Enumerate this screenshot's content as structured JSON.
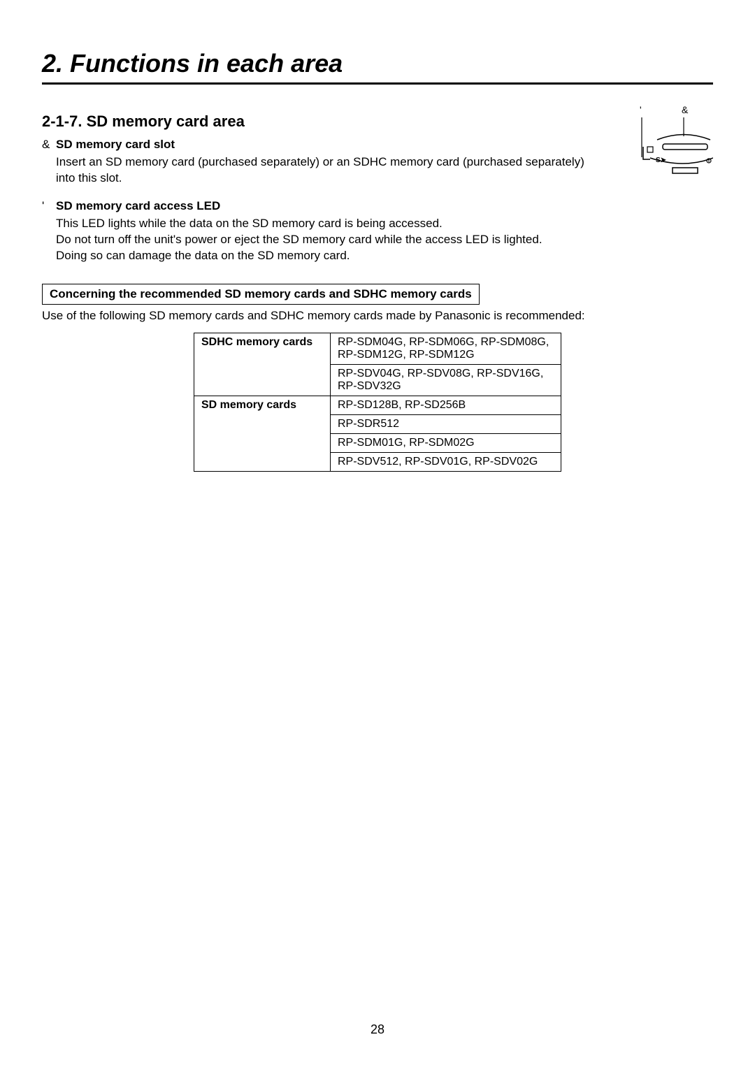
{
  "chapter_title": "2. Functions in each area",
  "section_title": "2-1-7. SD memory card area",
  "items": [
    {
      "marker": "&",
      "title": "SD memory card slot",
      "body": "Insert an SD memory card (purchased separately) or an SDHC memory card (purchased separately) into this slot."
    },
    {
      "marker": "'",
      "title": "SD memory card access LED",
      "body": "This LED lights while the data on the SD memory card is being accessed.\nDo not turn off the unit's power or eject the SD memory card while the access LED is lighted.\nDoing so can damage the data on the SD memory card."
    }
  ],
  "callout_title": "Concerning the recommended SD memory cards and SDHC memory cards",
  "callout_text": "Use of the following SD memory cards and SDHC memory cards made by Panasonic is recommended:",
  "table": {
    "groups": [
      {
        "label": "SDHC memory cards",
        "rows": [
          "RP-SDM04G, RP-SDM06G, RP-SDM08G, RP-SDM12G, RP-SDM12G",
          "RP-SDV04G, RP-SDV08G, RP-SDV16G, RP-SDV32G"
        ]
      },
      {
        "label": "SD memory cards",
        "rows": [
          "RP-SD128B, RP-SD256B",
          "RP-SDR512",
          "RP-SDM01G, RP-SDM02G",
          "RP-SDV512, RP-SDV01G, RP-SDV02G"
        ]
      }
    ]
  },
  "diagram": {
    "label_left": "'",
    "label_right": "&"
  },
  "page_number": "28",
  "colors": {
    "text": "#000000",
    "background": "#ffffff",
    "border": "#000000"
  }
}
